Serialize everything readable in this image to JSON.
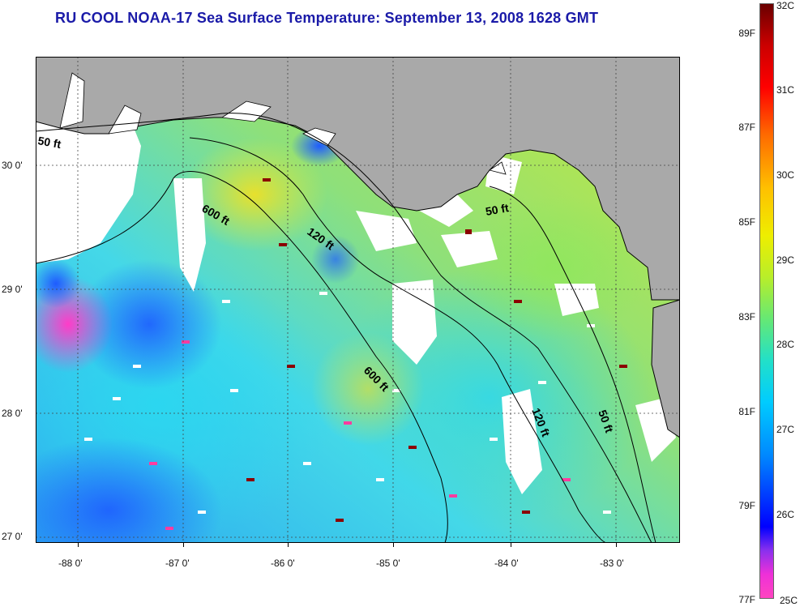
{
  "title": "RU COOL  NOAA-17  Sea Surface Temperature:  September 13, 2008 1628 GMT",
  "map": {
    "longitude_ticks": [
      "-88 0'",
      "-87 0'",
      "-86 0'",
      "-85 0'",
      "-84 0'",
      "-83 0'"
    ],
    "latitude_ticks": [
      "30 0'",
      "29 0'",
      "28 0'",
      "27 0'"
    ],
    "depth_contour_labels": [
      "50 ft",
      "600 ft",
      "120 ft",
      "50 ft",
      "600 ft",
      "120 ft",
      "50 ft"
    ],
    "colors": {
      "land": "#a9a9a9",
      "cloud": "#ffffff",
      "coastline": "#000000"
    }
  },
  "colorbar": {
    "fahrenheit_labels": [
      "89F",
      "87F",
      "85F",
      "83F",
      "81F",
      "79F",
      "77F"
    ],
    "celsius_labels": [
      "32C",
      "31C",
      "30C",
      "29C",
      "28C",
      "27C",
      "26C",
      "25C"
    ]
  }
}
